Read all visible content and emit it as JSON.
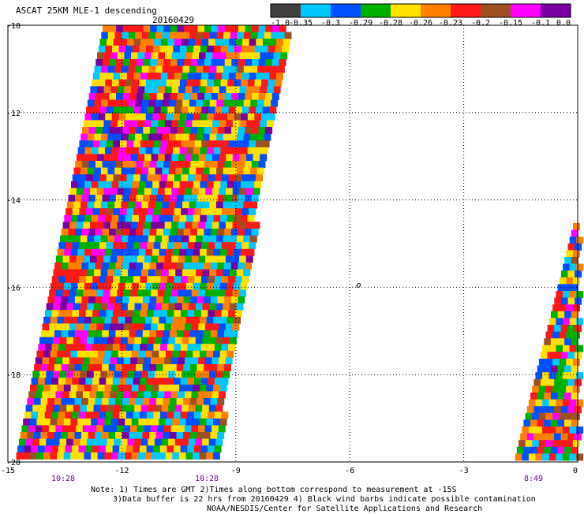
{
  "header": {
    "title": "ASCAT 25KM MLE-1 descending",
    "date": "20160429"
  },
  "colorbar": {
    "colors": [
      "#404040",
      "#00c8ff",
      "#0050ff",
      "#00b000",
      "#ffe000",
      "#ff8000",
      "#ff1818",
      "#a05020",
      "#ff00ff",
      "#7800a0"
    ],
    "labels": [
      "-1.0",
      "-0.35",
      "-0.3",
      "-0.29",
      "-0.28",
      "-0.26",
      "-0.23",
      "-0.2",
      "-0.15",
      "-0.1",
      "0.0"
    ]
  },
  "axes": {
    "x_ticks": [
      "-15",
      "-12",
      "-9",
      "-6",
      "-3",
      "0"
    ],
    "y_ticks": [
      "-10",
      "-12",
      "-14",
      "-16",
      "-18",
      "-20"
    ]
  },
  "pass_times": [
    "10:28",
    "10:28",
    "8:49"
  ],
  "marker": "o",
  "footer": {
    "line1": "Note: 1) Times are GMT 2)Times along bottom correspond to measurement at -15S",
    "line2": "3)Data buffer is 22 hrs from 20160429 4) Black wind barbs indicate possible contamination",
    "line3": "NOAA/NESDIS/Center for Satellite Applications and Research"
  }
}
